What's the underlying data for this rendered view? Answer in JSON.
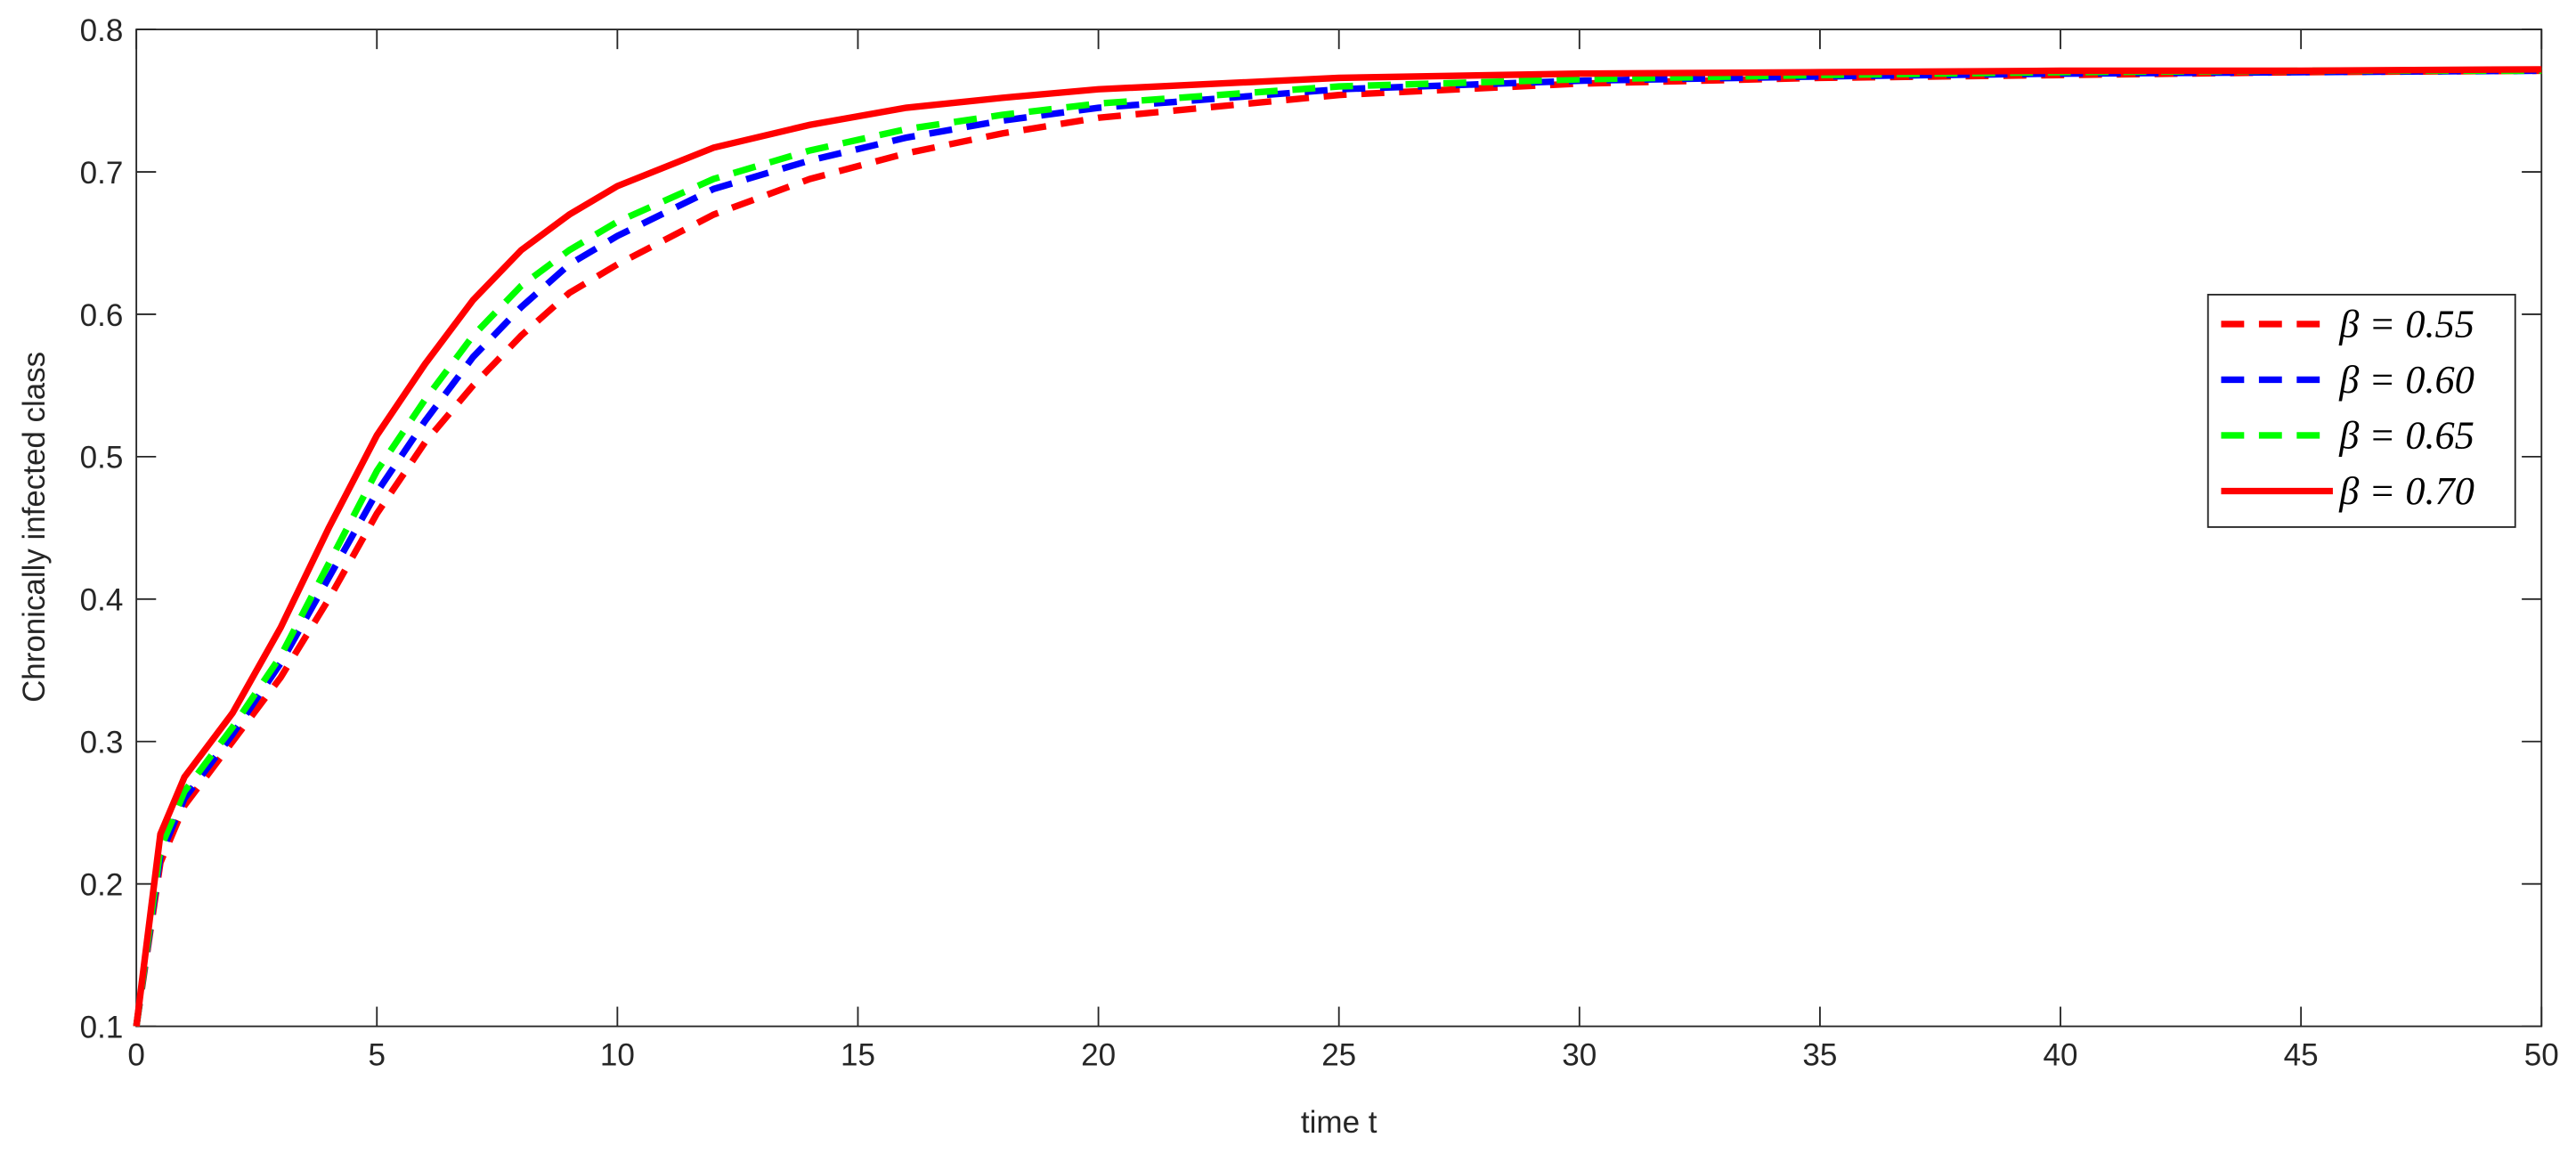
{
  "chart_data": {
    "type": "line",
    "xlabel": "time t",
    "ylabel": "Chronically infected class",
    "x": [
      0,
      0.5,
      1,
      2,
      3,
      4,
      5,
      6,
      7,
      8,
      9,
      10,
      12,
      14,
      16,
      18,
      20,
      25,
      30,
      35,
      40,
      45,
      50
    ],
    "series": [
      {
        "name": "β = 0.55",
        "color": "#ff0000",
        "dash": true,
        "values": [
          0.1,
          0.215,
          0.255,
          0.3,
          0.345,
          0.4,
          0.46,
          0.51,
          0.55,
          0.585,
          0.615,
          0.635,
          0.67,
          0.695,
          0.713,
          0.727,
          0.738,
          0.754,
          0.762,
          0.766,
          0.768,
          0.77,
          0.771
        ]
      },
      {
        "name": "β = 0.60",
        "color": "#0000ff",
        "dash": true,
        "values": [
          0.1,
          0.22,
          0.26,
          0.305,
          0.355,
          0.415,
          0.475,
          0.525,
          0.57,
          0.605,
          0.635,
          0.655,
          0.688,
          0.708,
          0.724,
          0.736,
          0.745,
          0.758,
          0.764,
          0.767,
          0.769,
          0.77,
          0.771
        ]
      },
      {
        "name": "β = 0.65",
        "color": "#00ff00",
        "dash": true,
        "values": [
          0.1,
          0.225,
          0.265,
          0.31,
          0.36,
          0.425,
          0.49,
          0.54,
          0.585,
          0.62,
          0.645,
          0.665,
          0.695,
          0.715,
          0.73,
          0.74,
          0.748,
          0.76,
          0.765,
          0.768,
          0.77,
          0.771,
          0.771
        ]
      },
      {
        "name": "β = 0.70",
        "color": "#ff0000",
        "dash": false,
        "values": [
          0.1,
          0.235,
          0.275,
          0.32,
          0.38,
          0.45,
          0.515,
          0.565,
          0.61,
          0.645,
          0.67,
          0.69,
          0.717,
          0.733,
          0.745,
          0.752,
          0.758,
          0.766,
          0.769,
          0.77,
          0.771,
          0.771,
          0.772
        ]
      }
    ],
    "xlim": [
      0,
      50
    ],
    "xticks": [
      0,
      5,
      10,
      15,
      20,
      25,
      30,
      35,
      40,
      45,
      50
    ],
    "ylim": [
      0.1,
      0.8
    ],
    "yticks": [
      0.1,
      0.2,
      0.3,
      0.4,
      0.5,
      0.6,
      0.7,
      0.8
    ],
    "legend": "right"
  }
}
